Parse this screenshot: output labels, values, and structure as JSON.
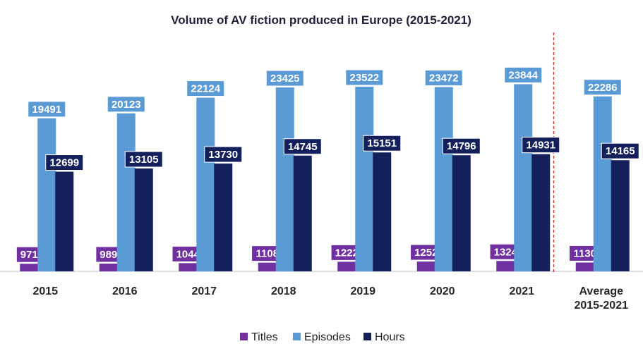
{
  "chart_data": {
    "type": "bar",
    "title": "Volume of AV fiction produced in Europe (2015-2021)",
    "categories": [
      "2015",
      "2016",
      "2017",
      "2018",
      "2019",
      "2020",
      "2021",
      [
        "Average",
        "2015-2021"
      ]
    ],
    "series": [
      {
        "name": "Titles",
        "color": "#7030a0",
        "values": [
          971,
          989,
          1044,
          1108,
          1222,
          1252,
          1324,
          1130
        ]
      },
      {
        "name": "Episodes",
        "color": "#5b9bd5",
        "values": [
          19491,
          20123,
          22124,
          23425,
          23522,
          23472,
          23844,
          22286
        ]
      },
      {
        "name": "Hours",
        "color": "#14205c",
        "values": [
          12699,
          13105,
          13730,
          14745,
          15151,
          14796,
          14931,
          14165
        ]
      }
    ],
    "ylim": [
      0,
      29000
    ],
    "legend_position": "bottom",
    "separator_before_category": 7,
    "separator_color": "#c0392b",
    "grid": false
  }
}
